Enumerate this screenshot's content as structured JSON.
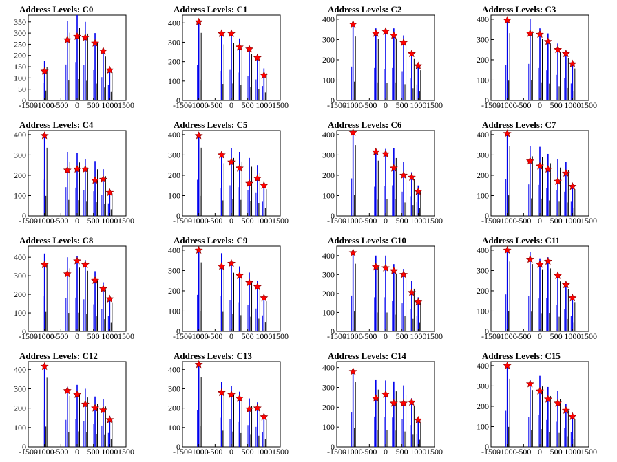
{
  "chart_data": [
    {
      "type": "bar",
      "title": "Address Levels: C0",
      "xticks": [
        -1500,
        -1000,
        -500,
        0,
        500,
        1000,
        1500
      ],
      "yticks": [
        0,
        50,
        100,
        150,
        200,
        250,
        300,
        350
      ],
      "ylim": [
        0,
        380
      ],
      "xlim": [
        -1500,
        1500
      ],
      "peaks_x": [
        -1000,
        -300,
        0,
        250,
        550,
        800,
        1000
      ],
      "peaks_height": [
        175,
        355,
        380,
        350,
        300,
        230,
        150
      ],
      "markers": [
        130,
        270,
        285,
        280,
        255,
        220,
        135
      ]
    },
    {
      "type": "bar",
      "title": "Address Levels: C1",
      "xticks": [
        -1500,
        -1000,
        -500,
        0,
        500,
        1000,
        1500
      ],
      "yticks": [
        0,
        100,
        200,
        300,
        400
      ],
      "ylim": [
        0,
        440
      ],
      "xlim": [
        -1500,
        1500
      ],
      "peaks_x": [
        -1000,
        -300,
        0,
        250,
        550,
        800,
        1000
      ],
      "peaks_height": [
        410,
        340,
        350,
        320,
        280,
        240,
        165
      ],
      "markers": [
        405,
        345,
        345,
        275,
        265,
        220,
        130
      ]
    },
    {
      "type": "bar",
      "title": "Address Levels: C2",
      "xticks": [
        -1500,
        -1000,
        -500,
        0,
        500,
        1000,
        1500
      ],
      "yticks": [
        0,
        100,
        200,
        300,
        400
      ],
      "ylim": [
        0,
        420
      ],
      "xlim": [
        -1500,
        1500
      ],
      "peaks_x": [
        -1000,
        -300,
        0,
        250,
        550,
        800,
        1000
      ],
      "peaks_height": [
        370,
        355,
        340,
        355,
        320,
        240,
        175
      ],
      "markers": [
        375,
        330,
        340,
        320,
        285,
        230,
        170
      ]
    },
    {
      "type": "bar",
      "title": "Address Levels: C3",
      "xticks": [
        -1500,
        -1000,
        -500,
        0,
        500,
        1000,
        1500
      ],
      "yticks": [
        0,
        100,
        200,
        300,
        400
      ],
      "ylim": [
        0,
        420
      ],
      "xlim": [
        -1500,
        1500
      ],
      "peaks_x": [
        -1000,
        -300,
        0,
        250,
        550,
        800,
        1000
      ],
      "peaks_height": [
        390,
        400,
        355,
        330,
        280,
        245,
        185
      ],
      "markers": [
        395,
        330,
        325,
        290,
        250,
        230,
        180
      ]
    },
    {
      "type": "bar",
      "title": "Address Levels: C4",
      "xticks": [
        -1500,
        -1000,
        -500,
        0,
        500,
        1000,
        1500
      ],
      "yticks": [
        0,
        100,
        200,
        300,
        400
      ],
      "ylim": [
        0,
        420
      ],
      "xlim": [
        -1500,
        1500
      ],
      "peaks_x": [
        -1000,
        -300,
        0,
        250,
        550,
        800,
        1000
      ],
      "peaks_height": [
        395,
        315,
        310,
        280,
        270,
        230,
        130
      ],
      "markers": [
        395,
        225,
        230,
        230,
        175,
        180,
        115
      ]
    },
    {
      "type": "bar",
      "title": "Address Levels: C5",
      "xticks": [
        -1500,
        -1000,
        -500,
        0,
        500,
        1000,
        1500
      ],
      "yticks": [
        0,
        100,
        200,
        300,
        400
      ],
      "ylim": [
        0,
        420
      ],
      "xlim": [
        -1500,
        1500
      ],
      "peaks_x": [
        -1000,
        -300,
        0,
        250,
        550,
        800,
        1000
      ],
      "peaks_height": [
        395,
        305,
        335,
        315,
        285,
        250,
        155
      ],
      "markers": [
        395,
        300,
        265,
        235,
        160,
        185,
        150
      ]
    },
    {
      "type": "bar",
      "title": "Address Levels: C6",
      "xticks": [
        -1500,
        -1000,
        -500,
        0,
        500,
        1000,
        1500
      ],
      "yticks": [
        0,
        100,
        200,
        300,
        400
      ],
      "ylim": [
        0,
        420
      ],
      "xlim": [
        -1500,
        1500
      ],
      "peaks_x": [
        -1000,
        -300,
        0,
        250,
        550,
        800,
        1000
      ],
      "peaks_height": [
        410,
        320,
        330,
        335,
        265,
        215,
        150
      ],
      "markers": [
        410,
        315,
        305,
        235,
        200,
        190,
        120
      ]
    },
    {
      "type": "bar",
      "title": "Address Levels: C7",
      "xticks": [
        -1500,
        -1000,
        -500,
        0,
        500,
        1000,
        1500
      ],
      "yticks": [
        0,
        100,
        200,
        300,
        400
      ],
      "ylim": [
        0,
        420
      ],
      "xlim": [
        -1500,
        1500
      ],
      "peaks_x": [
        -1000,
        -300,
        0,
        250,
        550,
        800,
        1000
      ],
      "peaks_height": [
        405,
        345,
        340,
        305,
        280,
        265,
        155
      ],
      "markers": [
        405,
        270,
        245,
        230,
        170,
        210,
        145
      ]
    },
    {
      "type": "bar",
      "title": "Address Levels: C8",
      "xticks": [
        -1500,
        -1000,
        -500,
        0,
        500,
        1000,
        1500
      ],
      "yticks": [
        0,
        100,
        200,
        300,
        400
      ],
      "ylim": [
        0,
        460
      ],
      "xlim": [
        -1500,
        1500
      ],
      "peaks_x": [
        -1000,
        -300,
        0,
        250,
        550,
        800,
        1000
      ],
      "peaks_height": [
        420,
        400,
        405,
        385,
        325,
        265,
        185
      ],
      "markers": [
        360,
        310,
        380,
        360,
        275,
        230,
        175
      ]
    },
    {
      "type": "bar",
      "title": "Address Levels: C9",
      "xticks": [
        -1500,
        -1000,
        -500,
        0,
        500,
        1000,
        1500
      ],
      "yticks": [
        0,
        100,
        200,
        300,
        400
      ],
      "ylim": [
        0,
        420
      ],
      "xlim": [
        -1500,
        1500
      ],
      "peaks_x": [
        -1000,
        -300,
        0,
        250,
        550,
        800,
        1000
      ],
      "peaks_height": [
        400,
        385,
        340,
        320,
        290,
        250,
        175
      ],
      "markers": [
        400,
        320,
        335,
        275,
        240,
        220,
        165
      ]
    },
    {
      "type": "bar",
      "title": "Address Levels: C10",
      "xticks": [
        -1500,
        -1000,
        -500,
        0,
        500,
        1000,
        1500
      ],
      "yticks": [
        0,
        100,
        200,
        300,
        400
      ],
      "ylim": [
        0,
        450
      ],
      "xlim": [
        -1500,
        1500
      ],
      "peaks_x": [
        -1000,
        -300,
        0,
        250,
        550,
        800,
        1000
      ],
      "peaks_height": [
        420,
        400,
        400,
        355,
        330,
        265,
        180
      ],
      "markers": [
        415,
        340,
        335,
        320,
        300,
        205,
        155
      ]
    },
    {
      "type": "bar",
      "title": "Address Levels: C11",
      "xticks": [
        -1500,
        -1000,
        -500,
        0,
        500,
        1000,
        1500
      ],
      "yticks": [
        0,
        100,
        200,
        300,
        400
      ],
      "ylim": [
        0,
        420
      ],
      "xlim": [
        -1500,
        1500
      ],
      "peaks_x": [
        -1000,
        -300,
        0,
        250,
        550,
        800,
        1000
      ],
      "peaks_height": [
        405,
        390,
        360,
        365,
        290,
        245,
        170
      ],
      "markers": [
        400,
        355,
        330,
        345,
        275,
        230,
        165
      ]
    },
    {
      "type": "bar",
      "title": "Address Levels: C12",
      "xticks": [
        -1500,
        -1000,
        -500,
        0,
        500,
        1000,
        1500
      ],
      "yticks": [
        0,
        100,
        200,
        300,
        400
      ],
      "ylim": [
        0,
        440
      ],
      "xlim": [
        -1500,
        1500
      ],
      "peaks_x": [
        -1000,
        -300,
        0,
        250,
        550,
        800,
        1000
      ],
      "peaks_height": [
        420,
        310,
        320,
        300,
        260,
        245,
        160
      ],
      "markers": [
        415,
        290,
        270,
        220,
        200,
        190,
        140
      ]
    },
    {
      "type": "bar",
      "title": "Address Levels: C13",
      "xticks": [
        -1500,
        -1000,
        -500,
        0,
        500,
        1000,
        1500
      ],
      "yticks": [
        0,
        100,
        200,
        300,
        400
      ],
      "ylim": [
        0,
        440
      ],
      "xlim": [
        -1500,
        1500
      ],
      "peaks_x": [
        -1000,
        -300,
        0,
        250,
        550,
        800,
        1000
      ],
      "peaks_height": [
        425,
        335,
        315,
        285,
        250,
        230,
        170
      ],
      "markers": [
        425,
        280,
        270,
        250,
        195,
        200,
        155
      ]
    },
    {
      "type": "bar",
      "title": "Address Levels: C14",
      "xticks": [
        -1500,
        -1000,
        -500,
        0,
        500,
        1000,
        1500
      ],
      "yticks": [
        0,
        100,
        200,
        300,
        400
      ],
      "ylim": [
        0,
        430
      ],
      "xlim": [
        -1500,
        1500
      ],
      "peaks_x": [
        -1000,
        -300,
        0,
        250,
        550,
        800,
        1000
      ],
      "peaks_height": [
        385,
        340,
        335,
        330,
        310,
        245,
        145
      ],
      "markers": [
        380,
        245,
        265,
        220,
        220,
        225,
        135
      ]
    },
    {
      "type": "bar",
      "title": "Address Levels: C15",
      "xticks": [
        -1500,
        -1000,
        -500,
        0,
        500,
        1000,
        1500
      ],
      "yticks": [
        0,
        100,
        200,
        300,
        400
      ],
      "ylim": [
        0,
        420
      ],
      "xlim": [
        -1500,
        1500
      ],
      "peaks_x": [
        -1000,
        -300,
        0,
        250,
        550,
        800,
        1000
      ],
      "peaks_height": [
        395,
        330,
        350,
        295,
        275,
        210,
        160
      ],
      "markers": [
        400,
        310,
        275,
        235,
        215,
        180,
        150
      ]
    }
  ],
  "colors": {
    "bars": "#0000ee",
    "dark": "#000000",
    "marker": "#ff0000",
    "marker_stroke": "#8b0000"
  }
}
